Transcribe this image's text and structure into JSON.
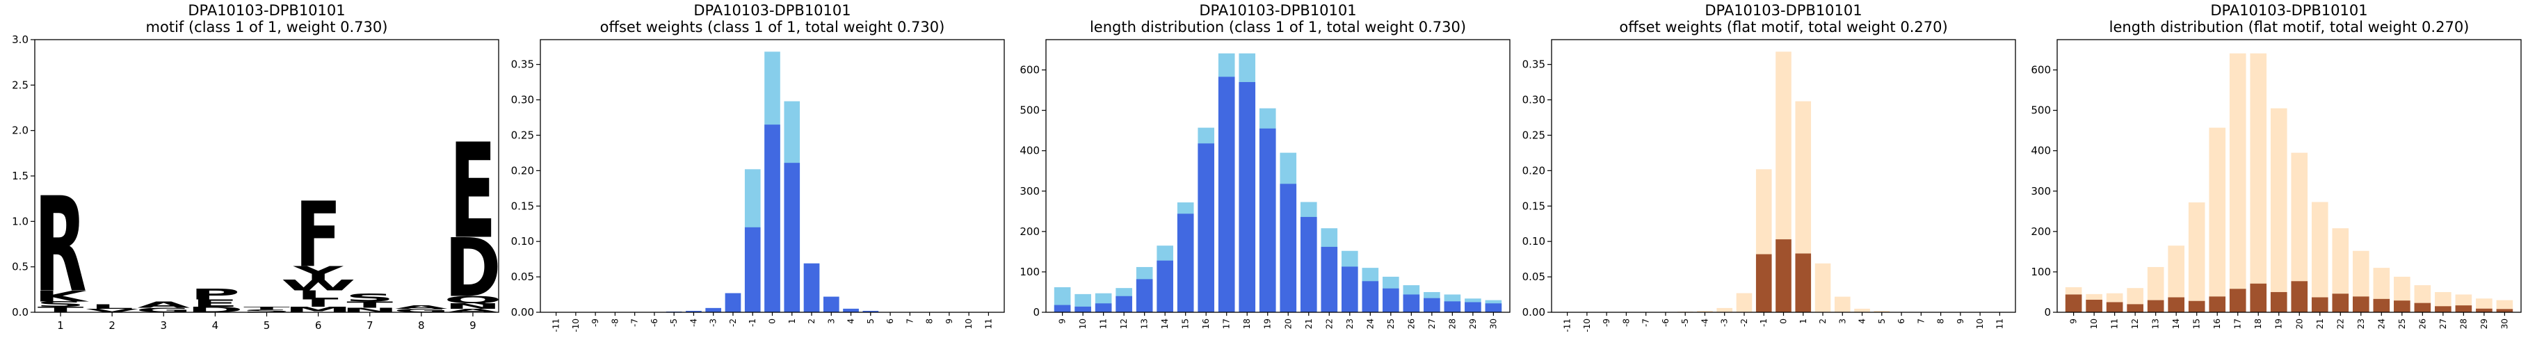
{
  "chart_data": [
    {
      "type": "sequence-logo",
      "title": "DPA10103-DPB10101",
      "subtitle": "motif (class 1 of 1, weight 0.730)",
      "ylim": [
        0,
        3.0
      ],
      "yticks": [
        "0.0",
        "0.5",
        "1.0",
        "1.5",
        "2.0",
        "2.5",
        "3.0"
      ],
      "positions": [
        "1",
        "2",
        "3",
        "4",
        "5",
        "6",
        "7",
        "8",
        "9"
      ],
      "letters": [
        [
          {
            "c": "R",
            "h": 1.05,
            "color": "#0000cc"
          },
          {
            "c": "K",
            "h": 0.12,
            "color": "#0000cc"
          },
          {
            "c": "T",
            "h": 0.06,
            "color": "#000000"
          },
          {
            "c": "S",
            "h": 0.06,
            "color": "#000000"
          }
        ],
        [
          {
            "c": "L",
            "h": 0.05,
            "color": "#000000"
          },
          {
            "c": "V",
            "h": 0.04,
            "color": "#000000"
          }
        ],
        [
          {
            "c": "A",
            "h": 0.07,
            "color": "#000000"
          },
          {
            "c": "G",
            "h": 0.05,
            "color": "#00aa00"
          }
        ],
        [
          {
            "c": "P",
            "h": 0.12,
            "color": "#000000"
          },
          {
            "c": "E",
            "h": 0.08,
            "color": "#cc0000"
          },
          {
            "c": "D",
            "h": 0.06,
            "color": "#cc0000"
          }
        ],
        [
          {
            "c": "S",
            "h": 0.03,
            "color": "#000000"
          },
          {
            "c": "T",
            "h": 0.03,
            "color": "#000000"
          }
        ],
        [
          {
            "c": "F",
            "h": 0.72,
            "color": "#000000"
          },
          {
            "c": "Y",
            "h": 0.15,
            "color": "#00aa00"
          },
          {
            "c": "W",
            "h": 0.12,
            "color": "#000000"
          },
          {
            "c": "L",
            "h": 0.1,
            "color": "#000000"
          },
          {
            "c": "I",
            "h": 0.08,
            "color": "#000000"
          },
          {
            "c": "M",
            "h": 0.06,
            "color": "#000000"
          }
        ],
        [
          {
            "c": "S",
            "h": 0.09,
            "color": "#000000"
          },
          {
            "c": "T",
            "h": 0.07,
            "color": "#000000"
          },
          {
            "c": "N",
            "h": 0.05,
            "color": "#aa00aa"
          }
        ],
        [
          {
            "c": "G",
            "h": 0.04,
            "color": "#00aa00"
          },
          {
            "c": "A",
            "h": 0.04,
            "color": "#000000"
          }
        ],
        [
          {
            "c": "E",
            "h": 1.05,
            "color": "#cc0000"
          },
          {
            "c": "D",
            "h": 0.65,
            "color": "#cc0000"
          },
          {
            "c": "Q",
            "h": 0.08,
            "color": "#aa00aa"
          },
          {
            "c": "N",
            "h": 0.06,
            "color": "#aa00aa"
          },
          {
            "c": "A",
            "h": 0.04,
            "color": "#000000"
          }
        ]
      ]
    },
    {
      "type": "bar",
      "title": "DPA10103-DPB10101",
      "subtitle": "offset weights (class 1 of 1, total weight 0.730)",
      "ylim": [
        0,
        0.385
      ],
      "yticks": [
        "0.00",
        "0.05",
        "0.10",
        "0.15",
        "0.20",
        "0.25",
        "0.30",
        "0.35"
      ],
      "categories": [
        "-11",
        "-10",
        "-9",
        "-8",
        "-7",
        "-6",
        "-5",
        "-4",
        "-3",
        "-2",
        "-1",
        "0",
        "1",
        "2",
        "3",
        "4",
        "5",
        "6",
        "7",
        "8",
        "9",
        "10",
        "11"
      ],
      "series": [
        {
          "color": "#87ceeb",
          "values": [
            0,
            0,
            0,
            0,
            0,
            0,
            0.001,
            0.002,
            0.006,
            0.027,
            0.202,
            0.368,
            0.298,
            0.069,
            0.022,
            0.005,
            0.002,
            0,
            0,
            0,
            0,
            0,
            0
          ]
        },
        {
          "color": "#4169e1",
          "values": [
            0,
            0,
            0,
            0,
            0,
            0,
            0.001,
            0.002,
            0.006,
            0.027,
            0.12,
            0.265,
            0.211,
            0.069,
            0.022,
            0.005,
            0.002,
            0,
            0,
            0,
            0,
            0,
            0
          ]
        }
      ]
    },
    {
      "type": "bar",
      "title": "DPA10103-DPB10101",
      "subtitle": "length distribution (class 1 of 1, total weight 0.730)",
      "ylim": [
        0,
        675
      ],
      "yticks": [
        "0",
        "100",
        "200",
        "300",
        "400",
        "500",
        "600"
      ],
      "categories": [
        "9",
        "10",
        "11",
        "12",
        "13",
        "14",
        "15",
        "16",
        "17",
        "18",
        "19",
        "20",
        "21",
        "22",
        "23",
        "24",
        "25",
        "26",
        "27",
        "28",
        "29",
        "30"
      ],
      "series": [
        {
          "color": "#87ceeb",
          "values": [
            62,
            45,
            47,
            60,
            112,
            165,
            272,
            457,
            641,
            641,
            505,
            395,
            273,
            208,
            152,
            110,
            88,
            67,
            50,
            44,
            34,
            30
          ]
        },
        {
          "color": "#4169e1",
          "values": [
            18,
            14,
            22,
            40,
            82,
            128,
            244,
            418,
            583,
            570,
            455,
            318,
            236,
            162,
            113,
            77,
            59,
            44,
            35,
            27,
            25,
            22
          ]
        }
      ]
    },
    {
      "type": "bar",
      "title": "DPA10103-DPB10101",
      "subtitle": "offset weights (flat motif, total weight 0.270)",
      "ylim": [
        0,
        0.385
      ],
      "yticks": [
        "0.00",
        "0.05",
        "0.10",
        "0.15",
        "0.20",
        "0.25",
        "0.30",
        "0.35"
      ],
      "categories": [
        "-11",
        "-10",
        "-9",
        "-8",
        "-7",
        "-6",
        "-5",
        "-4",
        "-3",
        "-2",
        "-1",
        "0",
        "1",
        "2",
        "3",
        "4",
        "5",
        "6",
        "7",
        "8",
        "9",
        "10",
        "11"
      ],
      "series": [
        {
          "color": "#ffe4c4",
          "values": [
            0,
            0,
            0,
            0,
            0,
            0,
            0.001,
            0.002,
            0.006,
            0.027,
            0.202,
            0.368,
            0.298,
            0.069,
            0.022,
            0.005,
            0.002,
            0,
            0,
            0,
            0,
            0,
            0
          ]
        },
        {
          "color": "#a0522d",
          "values": [
            0,
            0,
            0,
            0,
            0,
            0,
            0,
            0,
            0,
            0,
            0.082,
            0.103,
            0.083,
            0,
            0,
            0,
            0,
            0,
            0,
            0,
            0,
            0,
            0
          ]
        }
      ]
    },
    {
      "type": "bar",
      "title": "DPA10103-DPB10101",
      "subtitle": "length distribution (flat motif, total weight 0.270)",
      "ylim": [
        0,
        675
      ],
      "yticks": [
        "0",
        "100",
        "200",
        "300",
        "400",
        "500",
        "600"
      ],
      "categories": [
        "9",
        "10",
        "11",
        "12",
        "13",
        "14",
        "15",
        "16",
        "17",
        "18",
        "19",
        "20",
        "21",
        "22",
        "23",
        "24",
        "25",
        "26",
        "27",
        "28",
        "29",
        "30"
      ],
      "series": [
        {
          "color": "#ffe4c4",
          "values": [
            62,
            45,
            47,
            60,
            112,
            165,
            272,
            457,
            641,
            641,
            505,
            395,
            273,
            208,
            152,
            110,
            88,
            67,
            50,
            44,
            34,
            30
          ]
        },
        {
          "color": "#a0522d",
          "values": [
            44,
            31,
            25,
            20,
            30,
            37,
            28,
            39,
            58,
            71,
            50,
            77,
            37,
            46,
            39,
            33,
            29,
            23,
            15,
            17,
            9,
            8
          ]
        }
      ]
    }
  ]
}
